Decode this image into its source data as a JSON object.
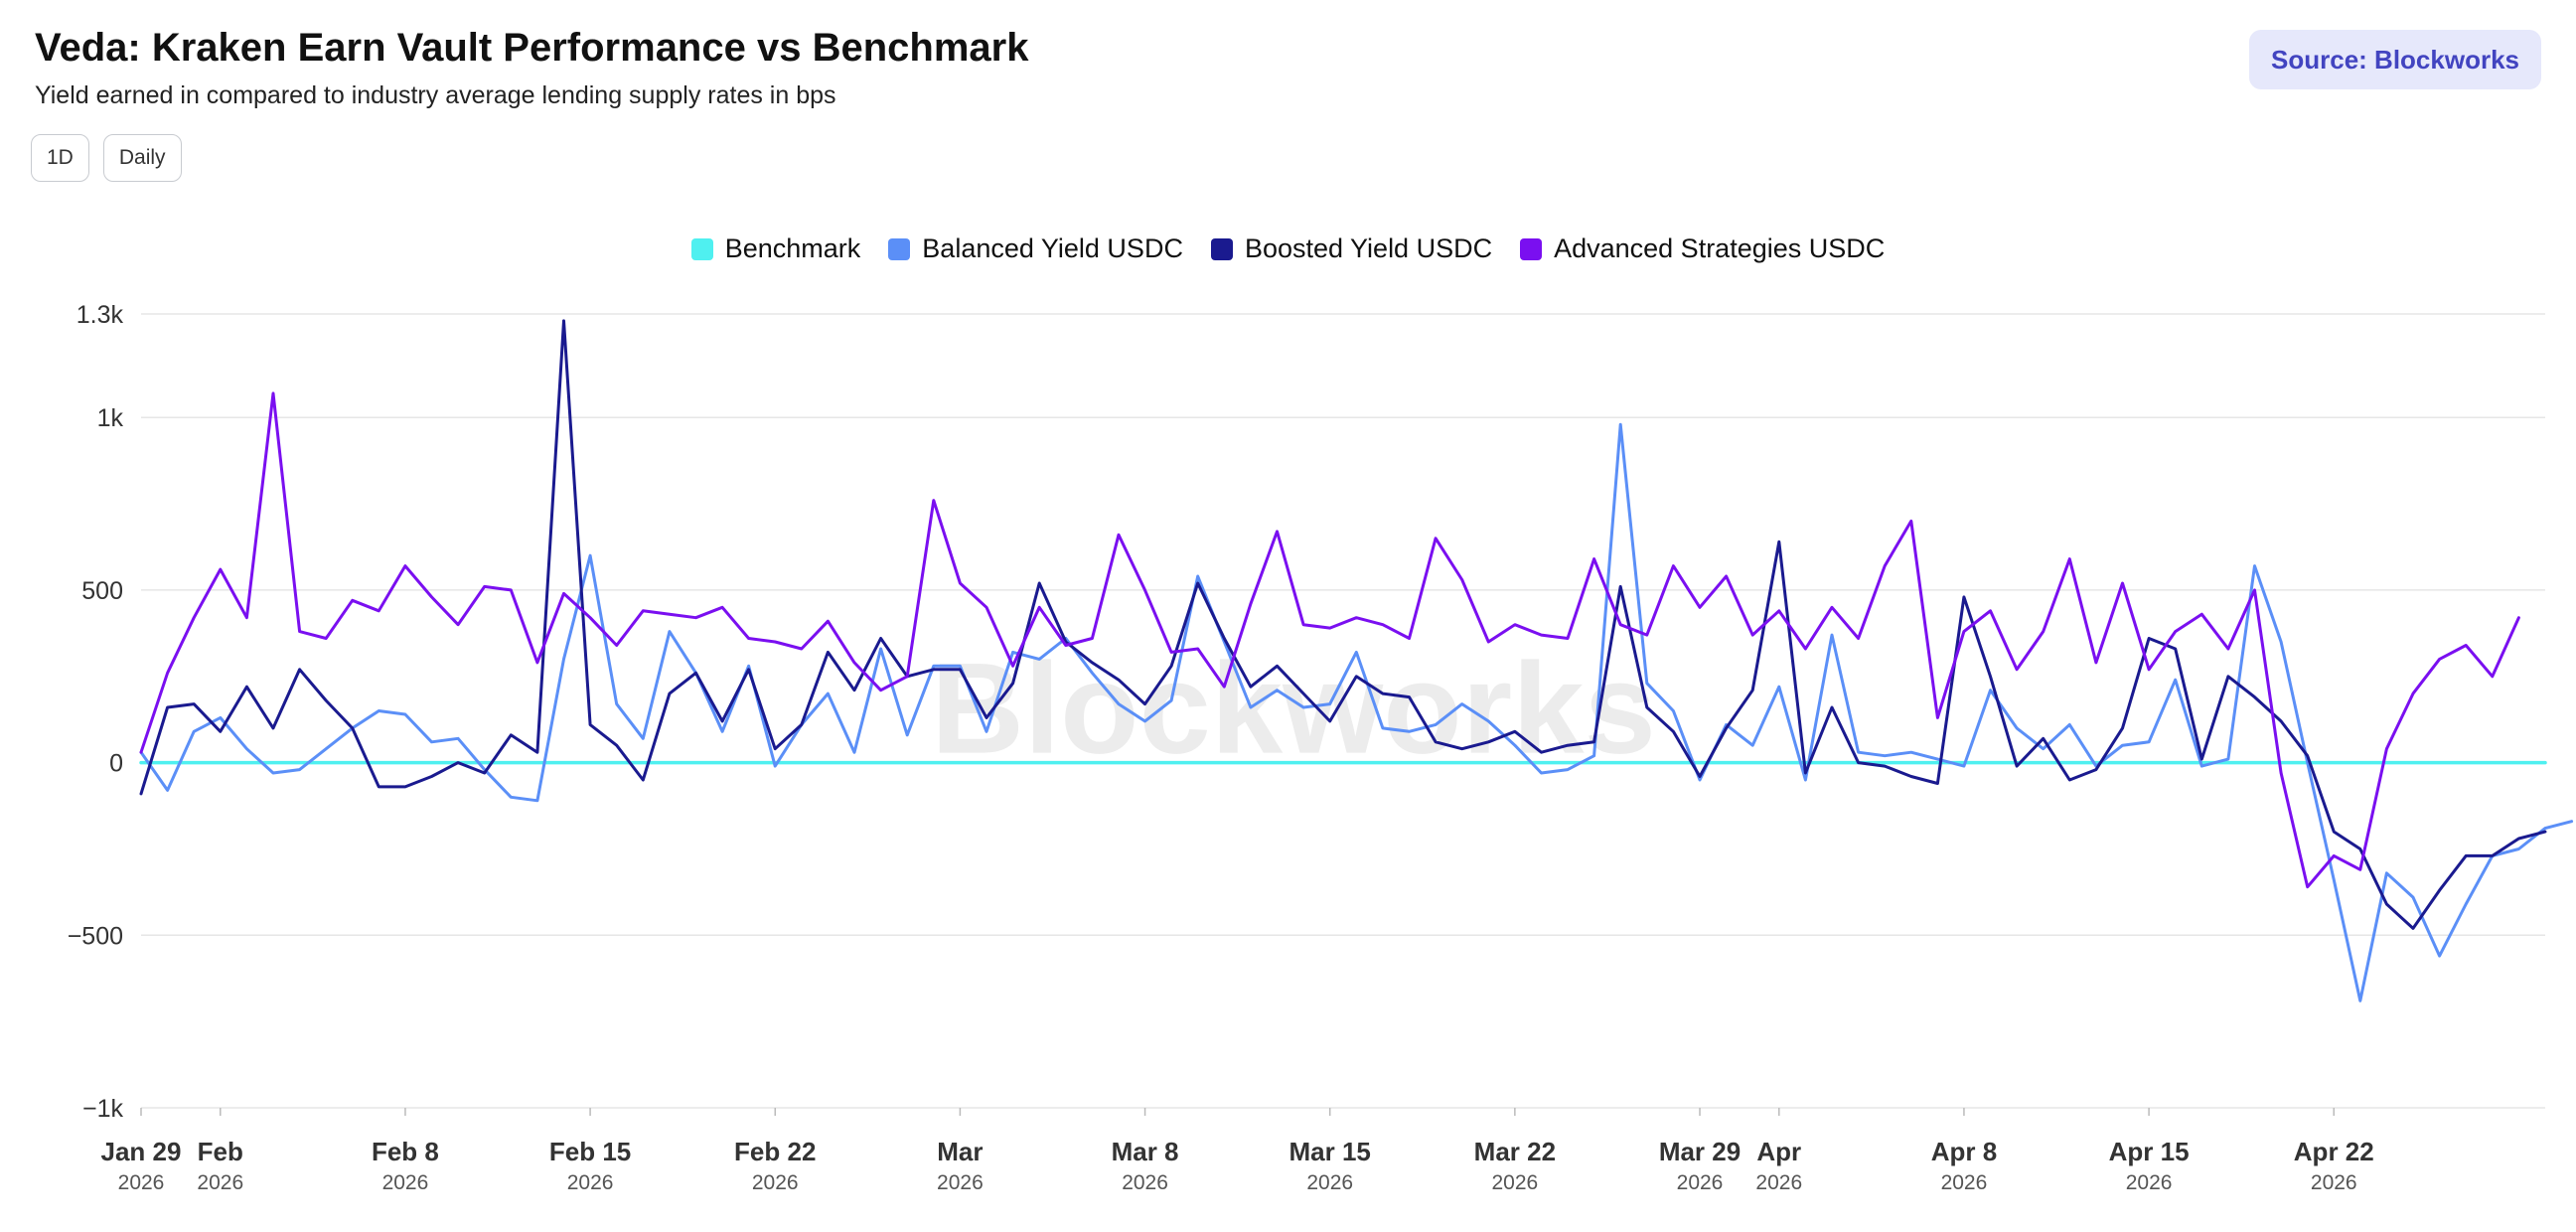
{
  "header": {
    "title": "Veda: Kraken Earn Vault Performance vs Benchmark",
    "subtitle": "Yield earned in compared to industry average lending supply rates in bps",
    "source": "Source: Blockworks"
  },
  "controls": {
    "interval": "1D",
    "granularity": "Daily"
  },
  "watermark": "Blockworks",
  "colors": {
    "benchmark": "#4ff0f0",
    "balanced": "#5b8ff7",
    "boosted": "#1a1a8f",
    "advanced": "#7a0ff0"
  },
  "chart_data": {
    "type": "line",
    "title": "Veda: Kraken Earn Vault Performance vs Benchmark",
    "subtitle": "Yield earned in compared to industry average lending supply rates in bps",
    "xlabel": "",
    "ylabel": "",
    "x_start": "2026-01-29",
    "x_step_days": 1,
    "ylim": [
      -1000,
      1300
    ],
    "y_ticks": [
      {
        "value": 1300,
        "label": "1.3k"
      },
      {
        "value": 1000,
        "label": "1k"
      },
      {
        "value": 500,
        "label": "500"
      },
      {
        "value": 0,
        "label": "0"
      },
      {
        "value": -500,
        "label": "−500"
      },
      {
        "value": -1000,
        "label": "−1k"
      }
    ],
    "x_ticks": [
      {
        "date": "2026-01-29",
        "label": "Jan 29",
        "year": "2026"
      },
      {
        "date": "2026-02-01",
        "label": "Feb",
        "year": "2026"
      },
      {
        "date": "2026-02-08",
        "label": "Feb 8",
        "year": "2026"
      },
      {
        "date": "2026-02-15",
        "label": "Feb 15",
        "year": "2026"
      },
      {
        "date": "2026-02-22",
        "label": "Feb 22",
        "year": "2026"
      },
      {
        "date": "2026-03-01",
        "label": "Mar",
        "year": "2026"
      },
      {
        "date": "2026-03-08",
        "label": "Mar 8",
        "year": "2026"
      },
      {
        "date": "2026-03-15",
        "label": "Mar 15",
        "year": "2026"
      },
      {
        "date": "2026-03-22",
        "label": "Mar 22",
        "year": "2026"
      },
      {
        "date": "2026-03-29",
        "label": "Mar 29",
        "year": "2026"
      },
      {
        "date": "2026-04-01",
        "label": "Apr",
        "year": "2026"
      },
      {
        "date": "2026-04-08",
        "label": "Apr 8",
        "year": "2026"
      },
      {
        "date": "2026-04-15",
        "label": "Apr 15",
        "year": "2026"
      },
      {
        "date": "2026-04-22",
        "label": "Apr 22",
        "year": "2026"
      }
    ],
    "grid": true,
    "legend_position": "top-center",
    "series": [
      {
        "name": "Benchmark",
        "color": "#4ff0f0",
        "values": [
          0,
          0,
          0,
          0,
          0,
          0,
          0,
          0,
          0,
          0,
          0,
          0,
          0,
          0,
          0,
          0,
          0,
          0,
          0,
          0,
          0,
          0,
          0,
          0,
          0,
          0,
          0,
          0,
          0,
          0,
          0,
          0,
          0,
          0,
          0,
          0,
          0,
          0,
          0,
          0,
          0,
          0,
          0,
          0,
          0,
          0,
          0,
          0,
          0,
          0,
          0,
          0,
          0,
          0,
          0,
          0,
          0,
          0,
          0,
          0,
          0,
          0,
          0,
          0,
          0,
          0,
          0,
          0,
          0,
          0,
          0,
          0,
          0,
          0,
          0,
          0,
          0,
          0,
          0,
          0,
          0,
          0,
          0,
          0,
          0,
          0,
          0,
          0,
          0,
          0,
          0,
          0
        ]
      },
      {
        "name": "Balanced Yield USDC",
        "color": "#5b8ff7",
        "values": [
          30,
          -80,
          90,
          130,
          40,
          -30,
          -20,
          40,
          100,
          150,
          140,
          60,
          70,
          -20,
          -100,
          -110,
          300,
          600,
          170,
          70,
          380,
          260,
          90,
          280,
          -10,
          110,
          200,
          30,
          330,
          80,
          280,
          280,
          90,
          320,
          300,
          360,
          260,
          170,
          120,
          180,
          540,
          350,
          160,
          210,
          160,
          170,
          320,
          100,
          90,
          110,
          170,
          120,
          50,
          -30,
          -20,
          20,
          980,
          230,
          150,
          -50,
          110,
          50,
          220,
          -50,
          370,
          30,
          20,
          30,
          10,
          -10,
          210,
          100,
          40,
          110,
          -10,
          50,
          60,
          240,
          -10,
          10,
          570,
          350,
          0,
          -340,
          -690,
          -320,
          -390,
          -560,
          -410,
          -270,
          -250,
          -190,
          -170
        ]
      },
      {
        "name": "Boosted Yield USDC",
        "color": "#1a1a8f",
        "values": [
          -90,
          160,
          170,
          90,
          220,
          100,
          270,
          180,
          100,
          -70,
          -70,
          -40,
          0,
          -30,
          80,
          30,
          1280,
          110,
          50,
          -50,
          200,
          260,
          120,
          270,
          40,
          110,
          320,
          210,
          360,
          250,
          270,
          270,
          130,
          230,
          520,
          350,
          290,
          240,
          170,
          280,
          520,
          360,
          220,
          280,
          200,
          120,
          250,
          200,
          190,
          60,
          40,
          60,
          90,
          30,
          50,
          60,
          510,
          160,
          90,
          -40,
          100,
          210,
          640,
          -30,
          160,
          0,
          -10,
          -40,
          -60,
          480,
          250,
          -10,
          70,
          -50,
          -20,
          100,
          360,
          330,
          10,
          250,
          190,
          120,
          20,
          -200,
          -250,
          -410,
          -480,
          -370,
          -270,
          -270,
          -220,
          -200
        ]
      },
      {
        "name": "Advanced Strategies USDC",
        "color": "#7a0ff0",
        "values": [
          30,
          260,
          420,
          560,
          420,
          1070,
          380,
          360,
          470,
          440,
          570,
          480,
          400,
          510,
          500,
          290,
          490,
          420,
          340,
          440,
          430,
          420,
          450,
          360,
          350,
          330,
          410,
          290,
          210,
          250,
          760,
          520,
          450,
          280,
          450,
          340,
          360,
          660,
          500,
          320,
          330,
          220,
          460,
          670,
          400,
          390,
          420,
          400,
          360,
          650,
          530,
          350,
          400,
          370,
          360,
          590,
          400,
          370,
          570,
          450,
          540,
          370,
          440,
          330,
          450,
          360,
          570,
          700,
          130,
          380,
          440,
          270,
          380,
          590,
          290,
          520,
          270,
          380,
          430,
          330,
          500,
          -30,
          -360,
          -270,
          -310,
          40,
          200,
          300,
          340,
          250,
          420
        ]
      }
    ]
  }
}
